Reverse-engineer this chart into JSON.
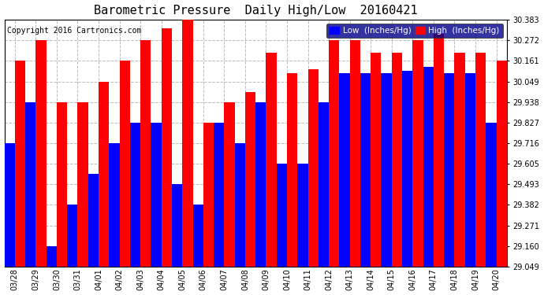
{
  "title": "Barometric Pressure  Daily High/Low  20160421",
  "copyright": "Copyright 2016 Cartronics.com",
  "legend_low": "Low  (Inches/Hg)",
  "legend_high": "High  (Inches/Hg)",
  "categories": [
    "03/28",
    "03/29",
    "03/30",
    "03/31",
    "04/01",
    "04/02",
    "04/03",
    "04/04",
    "04/05",
    "04/06",
    "04/07",
    "04/08",
    "04/09",
    "04/10",
    "04/11",
    "04/12",
    "04/13",
    "04/14",
    "04/15",
    "04/16",
    "04/17",
    "04/18",
    "04/19",
    "04/20"
  ],
  "high_values": [
    30.161,
    30.272,
    29.938,
    29.938,
    30.049,
    30.161,
    30.272,
    30.338,
    30.383,
    29.827,
    29.938,
    29.993,
    30.206,
    30.093,
    30.116,
    30.272,
    30.272,
    30.206,
    30.206,
    30.272,
    30.305,
    30.206,
    30.206,
    30.161
  ],
  "low_values": [
    29.716,
    29.938,
    29.16,
    29.382,
    29.549,
    29.716,
    29.827,
    29.827,
    29.493,
    29.382,
    29.827,
    29.716,
    29.938,
    29.605,
    29.605,
    29.938,
    30.093,
    30.093,
    30.093,
    30.105,
    30.127,
    30.093,
    30.093,
    29.827
  ],
  "ylim_min": 29.049,
  "ylim_max": 30.383,
  "yticks": [
    29.049,
    29.16,
    29.271,
    29.382,
    29.493,
    29.605,
    29.716,
    29.827,
    29.938,
    30.049,
    30.161,
    30.272,
    30.383
  ],
  "high_color": "#ff0000",
  "low_color": "#0000ff",
  "background_color": "#ffffff",
  "grid_color": "#bbbbbb",
  "title_fontsize": 11,
  "legend_fontsize": 7.5,
  "tick_fontsize": 7,
  "copyright_fontsize": 7
}
